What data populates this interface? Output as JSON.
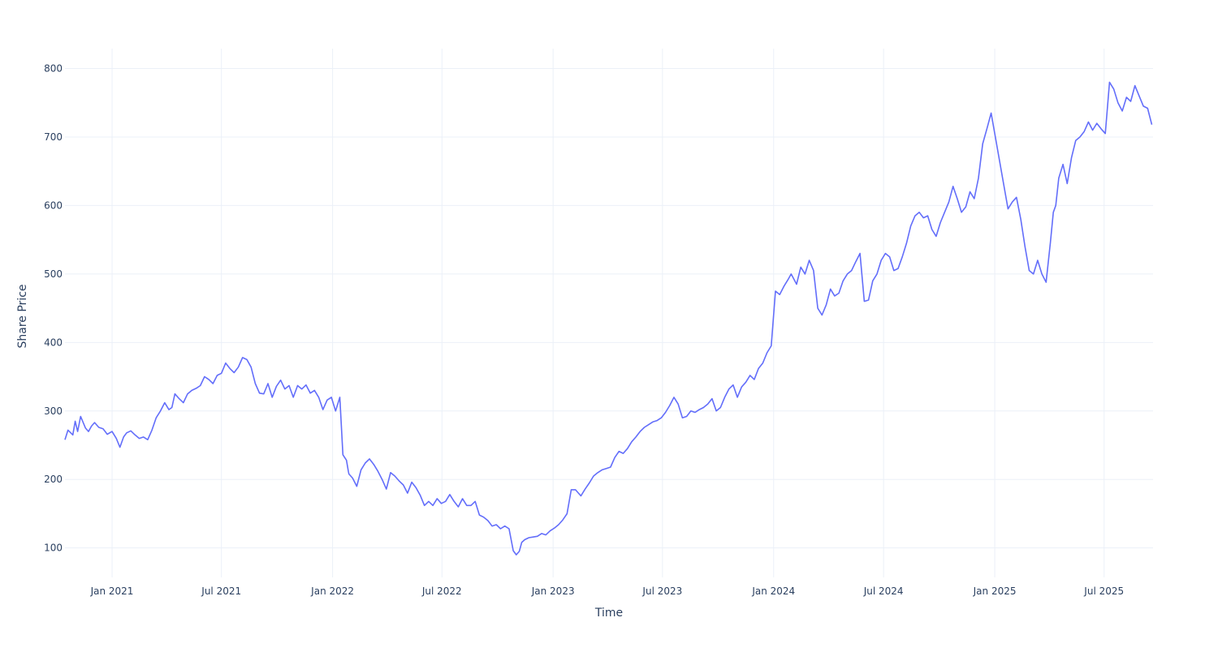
{
  "chart_data": {
    "type": "line",
    "title": "",
    "xlabel": "Time",
    "ylabel": "Share Price",
    "x_range": [
      "2020-10-15",
      "2025-09-20"
    ],
    "ylim": [
      57,
      829
    ],
    "x_ticks": [
      {
        "date": "2021-01-01",
        "label": "Jan 2021"
      },
      {
        "date": "2021-07-01",
        "label": "Jul 2021"
      },
      {
        "date": "2022-01-01",
        "label": "Jan 2022"
      },
      {
        "date": "2022-07-01",
        "label": "Jul 2022"
      },
      {
        "date": "2023-01-01",
        "label": "Jan 2023"
      },
      {
        "date": "2023-07-01",
        "label": "Jul 2023"
      },
      {
        "date": "2024-01-01",
        "label": "Jan 2024"
      },
      {
        "date": "2024-07-01",
        "label": "Jul 2024"
      },
      {
        "date": "2025-01-01",
        "label": "Jan 2025"
      },
      {
        "date": "2025-07-01",
        "label": "Jul 2025"
      }
    ],
    "y_ticks": [
      100,
      200,
      300,
      400,
      500,
      600,
      700,
      800
    ],
    "grid": true,
    "legend": "none",
    "line_color": "#636efa",
    "grid_color": "#ebf0f8",
    "series": [
      {
        "x": [
          "2020-10-15",
          "2020-10-20",
          "2020-10-28",
          "2020-11-01",
          "2020-11-05",
          "2020-11-10",
          "2020-11-18",
          "2020-11-23",
          "2020-11-28",
          "2020-12-03",
          "2020-12-10",
          "2020-12-17",
          "2020-12-24",
          "2021-01-01",
          "2021-01-08",
          "2021-01-14",
          "2021-01-20",
          "2021-01-25",
          "2021-02-01",
          "2021-02-08",
          "2021-02-15",
          "2021-02-22",
          "2021-03-01",
          "2021-03-08",
          "2021-03-15",
          "2021-03-22",
          "2021-03-29",
          "2021-04-05",
          "2021-04-10",
          "2021-04-15",
          "2021-04-22",
          "2021-04-29",
          "2021-05-06",
          "2021-05-13",
          "2021-05-20",
          "2021-05-27",
          "2021-06-03",
          "2021-06-10",
          "2021-06-17",
          "2021-06-24",
          "2021-07-01",
          "2021-07-08",
          "2021-07-15",
          "2021-07-22",
          "2021-07-29",
          "2021-08-05",
          "2021-08-12",
          "2021-08-19",
          "2021-08-26",
          "2021-09-02",
          "2021-09-09",
          "2021-09-16",
          "2021-09-23",
          "2021-09-30",
          "2021-10-07",
          "2021-10-14",
          "2021-10-21",
          "2021-10-28",
          "2021-11-04",
          "2021-11-11",
          "2021-11-18",
          "2021-11-25",
          "2021-12-02",
          "2021-12-09",
          "2021-12-16",
          "2021-12-23",
          "2021-12-30",
          "2022-01-06",
          "2022-01-13",
          "2022-01-18",
          "2022-01-24",
          "2022-01-27",
          "2022-01-28",
          "2022-02-03",
          "2022-02-10",
          "2022-02-17",
          "2022-02-24",
          "2022-03-03",
          "2022-03-10",
          "2022-03-17",
          "2022-03-24",
          "2022-03-31",
          "2022-04-07",
          "2022-04-14",
          "2022-04-21",
          "2022-04-28",
          "2022-05-05",
          "2022-05-12",
          "2022-05-19",
          "2022-05-26",
          "2022-06-02",
          "2022-06-09",
          "2022-06-16",
          "2022-06-23",
          "2022-06-30",
          "2022-07-07",
          "2022-07-14",
          "2022-07-21",
          "2022-07-28",
          "2022-08-04",
          "2022-08-11",
          "2022-08-18",
          "2022-08-25",
          "2022-09-01",
          "2022-09-08",
          "2022-09-15",
          "2022-09-22",
          "2022-09-29",
          "2022-10-06",
          "2022-10-13",
          "2022-10-20",
          "2022-10-27",
          "2022-11-01",
          "2022-11-06",
          "2022-11-10",
          "2022-11-15",
          "2022-11-22",
          "2022-11-29",
          "2022-12-06",
          "2022-12-13",
          "2022-12-20",
          "2022-12-27",
          "2023-01-03",
          "2023-01-10",
          "2023-01-17",
          "2023-01-24",
          "2023-01-31",
          "2023-02-07",
          "2023-02-12",
          "2023-02-16",
          "2023-02-23",
          "2023-03-02",
          "2023-03-09",
          "2023-03-16",
          "2023-03-23",
          "2023-03-30",
          "2023-04-06",
          "2023-04-13",
          "2023-04-20",
          "2023-04-27",
          "2023-05-04",
          "2023-05-11",
          "2023-05-18",
          "2023-05-25",
          "2023-06-01",
          "2023-06-08",
          "2023-06-15",
          "2023-06-22",
          "2023-06-29",
          "2023-07-06",
          "2023-07-13",
          "2023-07-20",
          "2023-07-27",
          "2023-08-03",
          "2023-08-10",
          "2023-08-17",
          "2023-08-24",
          "2023-08-31",
          "2023-09-07",
          "2023-09-14",
          "2023-09-21",
          "2023-09-28",
          "2023-10-05",
          "2023-10-12",
          "2023-10-19",
          "2023-10-26",
          "2023-11-02",
          "2023-11-09",
          "2023-11-16",
          "2023-11-23",
          "2023-11-30",
          "2023-12-07",
          "2023-12-14",
          "2023-12-21",
          "2023-12-28",
          "2024-01-04",
          "2024-01-11",
          "2024-01-18",
          "2024-01-25",
          "2024-01-30",
          "2024-02-02",
          "2024-02-08",
          "2024-02-15",
          "2024-02-22",
          "2024-02-29",
          "2024-03-07",
          "2024-03-14",
          "2024-03-21",
          "2024-03-28",
          "2024-04-04",
          "2024-04-11",
          "2024-04-18",
          "2024-04-25",
          "2024-05-02",
          "2024-05-09",
          "2024-05-16",
          "2024-05-23",
          "2024-05-30",
          "2024-06-06",
          "2024-06-13",
          "2024-06-20",
          "2024-06-27",
          "2024-07-04",
          "2024-07-11",
          "2024-07-18",
          "2024-07-25",
          "2024-08-01",
          "2024-08-08",
          "2024-08-15",
          "2024-08-22",
          "2024-08-29",
          "2024-09-05",
          "2024-09-12",
          "2024-09-19",
          "2024-09-26",
          "2024-10-03",
          "2024-10-10",
          "2024-10-17",
          "2024-10-24",
          "2024-10-31",
          "2024-11-07",
          "2024-11-14",
          "2024-11-21",
          "2024-11-28",
          "2024-12-05",
          "2024-12-12",
          "2024-12-19",
          "2024-12-26",
          "2025-01-02",
          "2025-01-09",
          "2025-01-16",
          "2025-01-23",
          "2025-01-30",
          "2025-02-06",
          "2025-02-13",
          "2025-02-20",
          "2025-02-27",
          "2025-03-06",
          "2025-03-13",
          "2025-03-20",
          "2025-03-27",
          "2025-04-03",
          "2025-04-08",
          "2025-04-12",
          "2025-04-17",
          "2025-04-24",
          "2025-05-01",
          "2025-05-08",
          "2025-05-15",
          "2025-05-22",
          "2025-05-29",
          "2025-06-05",
          "2025-06-12",
          "2025-06-19",
          "2025-06-26",
          "2025-07-03",
          "2025-07-10",
          "2025-07-17",
          "2025-07-24",
          "2025-07-31",
          "2025-08-07",
          "2025-08-14",
          "2025-08-21",
          "2025-08-28",
          "2025-09-04",
          "2025-09-11",
          "2025-09-18"
        ],
        "y": [
          258,
          272,
          265,
          285,
          270,
          292,
          275,
          270,
          278,
          283,
          276,
          274,
          266,
          270,
          260,
          247,
          262,
          268,
          271,
          265,
          260,
          262,
          258,
          272,
          290,
          300,
          312,
          302,
          305,
          325,
          318,
          312,
          325,
          330,
          333,
          337,
          350,
          346,
          340,
          352,
          355,
          370,
          362,
          356,
          364,
          378,
          375,
          364,
          340,
          326,
          325,
          340,
          320,
          336,
          345,
          332,
          337,
          320,
          337,
          332,
          338,
          326,
          330,
          320,
          302,
          316,
          320,
          300,
          320,
          236,
          228,
          212,
          208,
          202,
          190,
          214,
          224,
          230,
          222,
          212,
          200,
          186,
          210,
          205,
          198,
          192,
          180,
          196,
          188,
          177,
          162,
          168,
          162,
          172,
          165,
          168,
          178,
          168,
          160,
          172,
          162,
          162,
          168,
          148,
          145,
          140,
          132,
          134,
          128,
          132,
          128,
          96,
          90,
          95,
          108,
          112,
          115,
          116,
          117,
          121,
          119,
          125,
          129,
          134,
          141,
          150,
          185,
          185,
          180,
          176,
          186,
          195,
          205,
          210,
          214,
          216,
          218,
          232,
          241,
          238,
          245,
          255,
          262,
          270,
          276,
          280,
          284,
          286,
          290,
          298,
          308,
          320,
          310,
          290,
          292,
          300,
          298,
          302,
          305,
          310,
          318,
          300,
          305,
          320,
          332,
          338,
          320,
          335,
          342,
          352,
          346,
          362,
          370,
          385,
          395,
          475,
          470,
          482,
          492,
          500,
          495,
          485,
          510,
          500,
          520,
          505,
          450,
          440,
          455,
          478,
          468,
          472,
          490,
          500,
          505,
          518,
          530,
          460,
          462,
          490,
          500,
          520,
          530,
          525,
          505,
          508,
          525,
          545,
          570,
          585,
          590,
          582,
          585,
          565,
          555,
          575,
          590,
          605,
          628,
          610,
          590,
          598,
          620,
          610,
          640,
          690,
          712,
          735,
          700,
          665,
          630,
          595,
          605,
          612,
          580,
          540,
          505,
          500,
          520,
          500,
          488,
          545,
          590,
          600,
          640,
          660,
          632,
          670,
          695,
          700,
          708,
          722,
          710,
          720,
          712,
          705,
          780,
          770,
          750,
          738,
          758,
          752,
          775,
          760,
          745,
          742,
          718
        ]
      }
    ]
  }
}
